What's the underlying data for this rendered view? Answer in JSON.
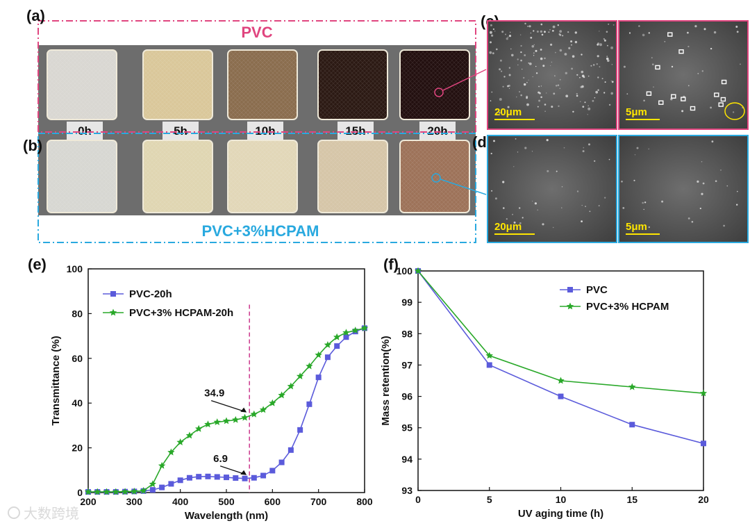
{
  "panels": {
    "a": "(a)",
    "b": "(b)",
    "c": "(c)",
    "d": "(d)",
    "e": "(e)",
    "f": "(f)"
  },
  "photos": {
    "pvc_title": "PVC",
    "hcpam_title": "PVC+3%HCPAM",
    "hours": [
      "0h",
      "5h",
      "10h",
      "15h",
      "20h"
    ],
    "pvc_colors": [
      "#d9d7d2",
      "#dac79a",
      "#8a6d4e",
      "#2c1a14",
      "#231010"
    ],
    "hcpam_colors": [
      "#d7d7d2",
      "#e0d6b2",
      "#e2d7b8",
      "#d6c6a8",
      "#9d7259"
    ],
    "pvc_frame_color": "#e0457f",
    "hcpam_frame_color": "#29a9df"
  },
  "sem": {
    "c_scales": [
      "20μm",
      "5μm"
    ],
    "d_scales": [
      "20μm",
      "5μm"
    ]
  },
  "watermark": "大数跨境",
  "chart_data": [
    {
      "type": "line",
      "panel": "(e)",
      "xlabel": "Wavelength (nm)",
      "ylabel": "Transmittance (%)",
      "xlim": [
        200,
        800
      ],
      "ylim": [
        0,
        100
      ],
      "xticks": [
        200,
        300,
        400,
        500,
        600,
        700,
        800
      ],
      "yticks": [
        0,
        20,
        40,
        60,
        80,
        100
      ],
      "series": [
        {
          "name": "PVC-20h",
          "color": "#5b5bdb",
          "marker": "square",
          "x": [
            200,
            220,
            240,
            260,
            280,
            300,
            320,
            340,
            360,
            380,
            400,
            420,
            440,
            460,
            480,
            500,
            520,
            540,
            560,
            580,
            600,
            620,
            640,
            660,
            680,
            700,
            720,
            740,
            760,
            780,
            800
          ],
          "y": [
            0.3,
            0.3,
            0.3,
            0.3,
            0.4,
            0.5,
            0.7,
            1.2,
            2.3,
            3.9,
            5.5,
            6.6,
            7.1,
            7.2,
            7.0,
            6.8,
            6.5,
            6.3,
            6.6,
            7.6,
            9.8,
            13.5,
            19.0,
            28.0,
            39.5,
            51.5,
            60.5,
            65.5,
            69.5,
            72.0,
            73.5
          ]
        },
        {
          "name": "PVC+3% HCPAM-20h",
          "color": "#29a829",
          "marker": "star",
          "x": [
            200,
            220,
            240,
            260,
            280,
            300,
            320,
            340,
            360,
            380,
            400,
            420,
            440,
            460,
            480,
            500,
            520,
            540,
            560,
            580,
            600,
            620,
            640,
            660,
            680,
            700,
            720,
            740,
            760,
            780,
            800
          ],
          "y": [
            0.3,
            0.3,
            0.3,
            0.3,
            0.4,
            0.5,
            0.8,
            3.8,
            12.0,
            18.0,
            22.5,
            25.5,
            28.5,
            30.5,
            31.5,
            32.0,
            32.5,
            33.5,
            35.0,
            37.0,
            40.0,
            43.5,
            47.5,
            52.0,
            56.5,
            61.5,
            66.0,
            69.5,
            71.5,
            72.5,
            73.5
          ]
        }
      ],
      "annotations": [
        {
          "text": "34.9",
          "x": 550,
          "y": 34.9
        },
        {
          "text": "6.9",
          "x": 550,
          "y": 6.9
        }
      ],
      "reference_line_x": 550
    },
    {
      "type": "line",
      "panel": "(f)",
      "xlabel": "UV aging time (h)",
      "ylabel": "Mass retention(%)",
      "xlim": [
        0,
        20
      ],
      "ylim": [
        93,
        100
      ],
      "xticks": [
        0,
        5,
        10,
        15,
        20
      ],
      "yticks": [
        93,
        94,
        95,
        96,
        97,
        98,
        99,
        100
      ],
      "series": [
        {
          "name": "PVC",
          "color": "#5b5bdb",
          "marker": "square",
          "x": [
            0,
            5,
            10,
            15,
            20
          ],
          "y": [
            100,
            97.0,
            96.0,
            95.1,
            94.5
          ]
        },
        {
          "name": "PVC+3% HCPAM",
          "color": "#29a829",
          "marker": "star",
          "x": [
            0,
            5,
            10,
            15,
            20
          ],
          "y": [
            100,
            97.3,
            96.5,
            96.3,
            96.1
          ]
        }
      ]
    }
  ]
}
